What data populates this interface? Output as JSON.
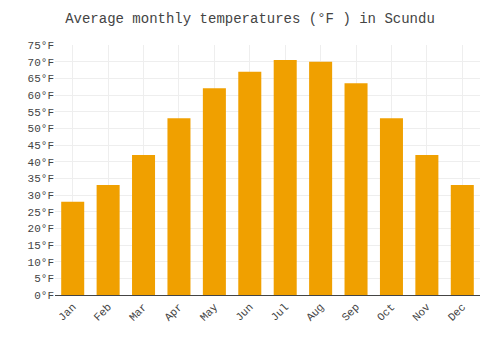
{
  "chart_data": {
    "type": "bar",
    "title": "Average monthly temperatures (°F ) in Scundu",
    "categories": [
      "Jan",
      "Feb",
      "Mar",
      "Apr",
      "May",
      "Jun",
      "Jul",
      "Aug",
      "Sep",
      "Oct",
      "Nov",
      "Dec"
    ],
    "values": [
      28,
      33,
      42,
      53,
      62,
      67,
      70.5,
      70,
      63.5,
      53,
      42,
      33
    ],
    "color": "#F0A000",
    "ylim": [
      0,
      75
    ],
    "yticks": [
      {
        "value": 0,
        "label": "0°F"
      },
      {
        "value": 5,
        "label": "5°F"
      },
      {
        "value": 10,
        "label": "10°F"
      },
      {
        "value": 15,
        "label": "15°F"
      },
      {
        "value": 20,
        "label": "20°F"
      },
      {
        "value": 25,
        "label": "25°F"
      },
      {
        "value": 30,
        "label": "30°F"
      },
      {
        "value": 35,
        "label": "35°F"
      },
      {
        "value": 40,
        "label": "40°F"
      },
      {
        "value": 45,
        "label": "45°F"
      },
      {
        "value": 50,
        "label": "50°F"
      },
      {
        "value": 55,
        "label": "55°F"
      },
      {
        "value": 60,
        "label": "60°F"
      },
      {
        "value": 65,
        "label": "65°F"
      },
      {
        "value": 70,
        "label": "70°F"
      },
      {
        "value": 75,
        "label": "75°F"
      }
    ],
    "grid": true
  }
}
